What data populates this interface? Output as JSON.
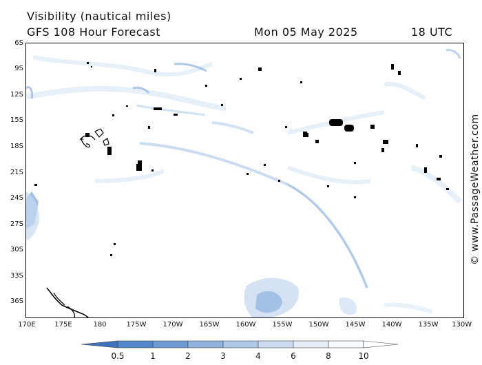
{
  "header": {
    "title": "Visibility (nautical miles)",
    "model": "GFS 108 Hour Forecast",
    "date": "Mon 05 May 2025",
    "time": "18 UTC"
  },
  "credit": "© www.PassageWeather.com",
  "lat_labels": [
    "6S",
    "9S",
    "12S",
    "15S",
    "18S",
    "21S",
    "24S",
    "27S",
    "30S",
    "33S",
    "36S"
  ],
  "lon_labels": [
    "170E",
    "175E",
    "180",
    "175W",
    "170W",
    "165W",
    "160W",
    "155W",
    "150W",
    "145W",
    "140W",
    "135W",
    "130W"
  ],
  "legend": {
    "labels": [
      "0.5",
      "1",
      "2",
      "3",
      "4",
      "6",
      "8",
      "10"
    ],
    "colors": [
      "#3d74bd",
      "#5287cb",
      "#6e9bd4",
      "#8fb2de",
      "#b0c9e8",
      "#ccdcf1",
      "#e4edf8",
      "#f6f9fd",
      "#ffffff"
    ]
  },
  "colors": {
    "land_outline": "#000000",
    "fog_light": "#e8f0fa",
    "fog_mid": "#c5d8ef",
    "fog_dark": "#8fb2de"
  }
}
